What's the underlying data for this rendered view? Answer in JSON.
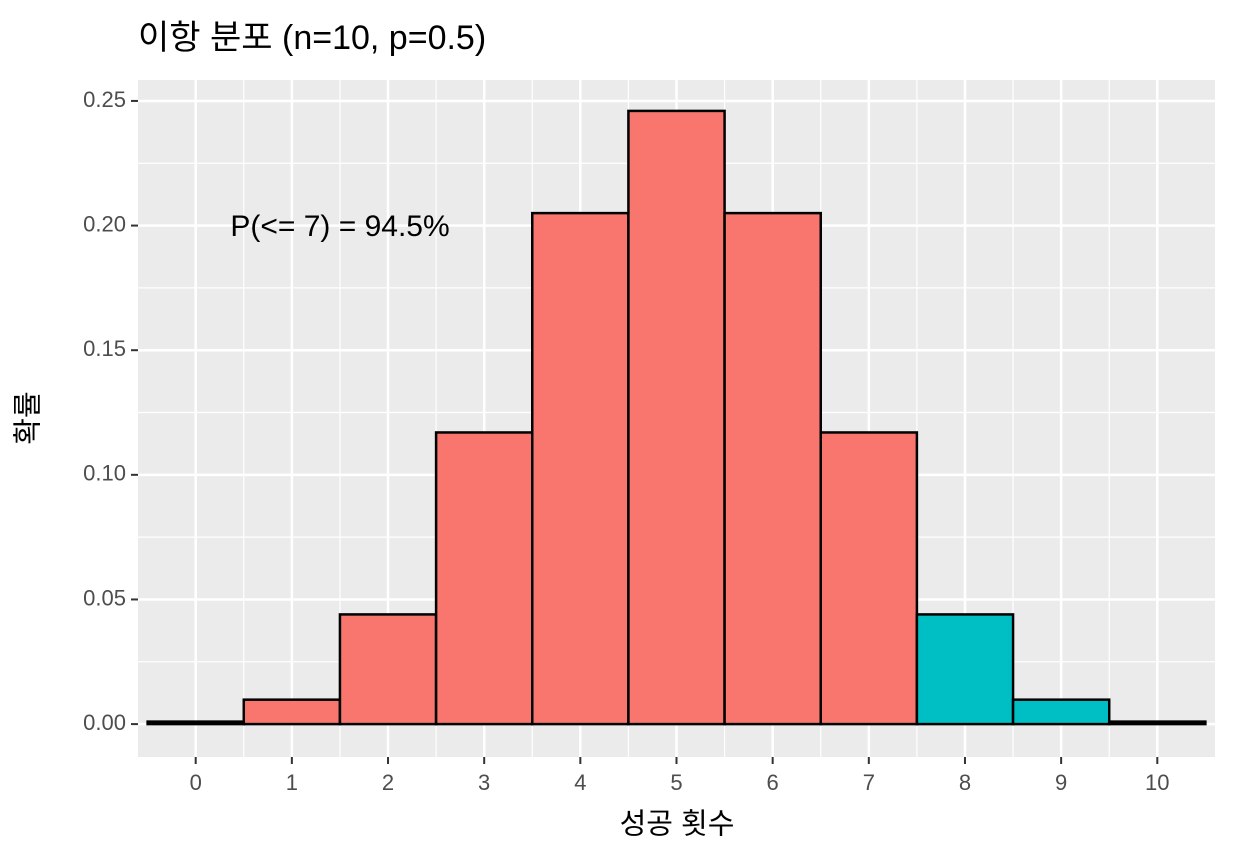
{
  "chart_data": {
    "type": "bar",
    "title": "이항 분포 (n=10, p=0.5)",
    "x_label": "성공 횟수",
    "y_label": "확률",
    "annotation": "P(<= 7) = 94.5%",
    "x": [
      0,
      1,
      2,
      3,
      4,
      5,
      6,
      7,
      8,
      9,
      10
    ],
    "values": [
      0.001,
      0.0098,
      0.044,
      0.117,
      0.205,
      0.246,
      0.205,
      0.117,
      0.044,
      0.0098,
      0.001
    ],
    "colors": [
      "#F8766D",
      "#F8766D",
      "#F8766D",
      "#F8766D",
      "#F8766D",
      "#F8766D",
      "#F8766D",
      "#F8766D",
      "#00BFC4",
      "#00BFC4",
      "#00BFC4"
    ],
    "xlim": [
      -0.6,
      10.6
    ],
    "ylim": [
      -0.0132,
      0.2584
    ],
    "xticks": [
      0,
      1,
      2,
      3,
      4,
      5,
      6,
      7,
      8,
      9,
      10
    ],
    "yticks": [
      {
        "value": 0,
        "label": "0.00"
      },
      {
        "value": 0.05,
        "label": "0.05"
      },
      {
        "value": 0.1,
        "label": "0.10"
      },
      {
        "value": 0.15,
        "label": "0.15"
      },
      {
        "value": 0.2,
        "label": "0.20"
      },
      {
        "value": 0.25,
        "label": "0.25"
      }
    ],
    "grid": true
  }
}
